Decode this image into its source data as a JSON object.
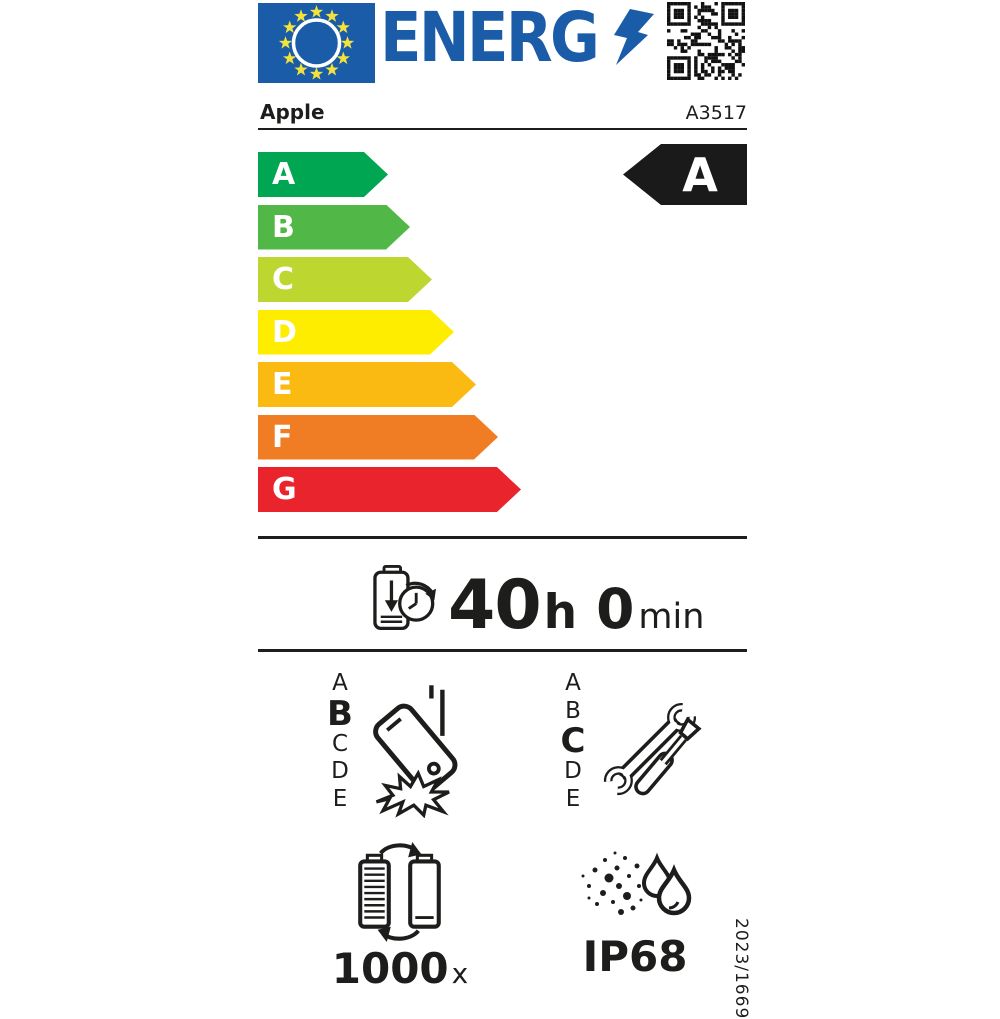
{
  "header": {
    "energy_logo_text": "ENERG",
    "eu_blue": "#1b5ca9",
    "star_yellow": "#f2e23b"
  },
  "brand": {
    "name": "Apple",
    "model": "A3517"
  },
  "energy_scale": {
    "rating": "A",
    "classes": [
      {
        "label": "A",
        "color": "#00a651"
      },
      {
        "label": "B",
        "color": "#51b848"
      },
      {
        "label": "C",
        "color": "#bed630"
      },
      {
        "label": "D",
        "color": "#ffed00"
      },
      {
        "label": "E",
        "color": "#fbba12"
      },
      {
        "label": "F",
        "color": "#f07d23"
      },
      {
        "label": "G",
        "color": "#e9242c"
      }
    ]
  },
  "battery_endurance": {
    "hours": "40",
    "hours_unit": "h",
    "minutes": "0",
    "minutes_unit": "min"
  },
  "drop_resistance": {
    "scale": [
      "A",
      "B",
      "C",
      "D",
      "E"
    ],
    "rating": "B"
  },
  "repairability": {
    "scale": [
      "A",
      "B",
      "C",
      "D",
      "E"
    ],
    "rating": "C"
  },
  "battery_cycles": {
    "value": "1000",
    "unit": "x"
  },
  "ingress_protection": {
    "rating": "IP68"
  },
  "registration_number": "2023/1669"
}
